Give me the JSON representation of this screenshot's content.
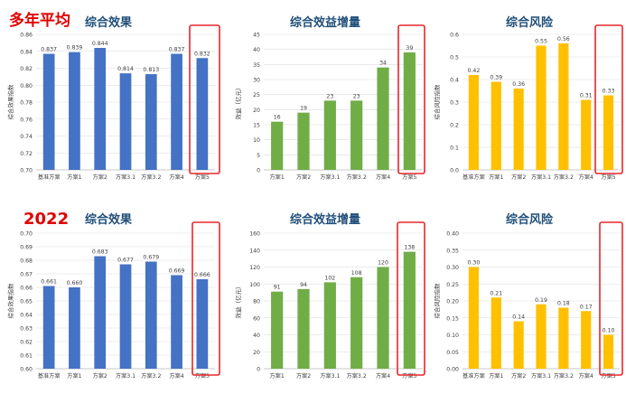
{
  "row_labels": {
    "top": "多年平均",
    "bottom": "2022"
  },
  "highlight_color": "#e8262a",
  "chart_data": [
    {
      "type": "bar",
      "title": "综合效果",
      "ylabel": "综合效果指数",
      "ylim": [
        0.7,
        0.86
      ],
      "yticks": [
        0.7,
        0.72,
        0.74,
        0.76,
        0.78,
        0.8,
        0.82,
        0.84,
        0.86
      ],
      "ytick_decimals": 2,
      "value_decimals": 3,
      "categories": [
        "基准方案",
        "方案1",
        "方案2",
        "方案3.1",
        "方案3.2",
        "方案4",
        "方案5"
      ],
      "values": [
        0.837,
        0.839,
        0.844,
        0.814,
        0.813,
        0.837,
        0.832
      ],
      "color": "#4472c4",
      "highlight_index": 6
    },
    {
      "type": "bar",
      "title": "综合效益增量",
      "ylabel": "效益（亿元）",
      "ylim": [
        0,
        45
      ],
      "yticks": [
        0,
        5,
        10,
        15,
        20,
        25,
        30,
        35,
        40,
        45
      ],
      "ytick_decimals": 0,
      "value_decimals": 0,
      "categories": [
        "方案1",
        "方案2",
        "方案3.1",
        "方案3.2",
        "方案4",
        "方案5"
      ],
      "values": [
        16,
        19,
        23,
        23,
        34,
        39
      ],
      "color": "#70ad47",
      "highlight_index": 5
    },
    {
      "type": "bar",
      "title": "综合风险",
      "ylabel": "综合风险指数",
      "ylim": [
        0,
        0.6
      ],
      "yticks": [
        0,
        0.1,
        0.2,
        0.3,
        0.4,
        0.5,
        0.6
      ],
      "ytick_decimals": 1,
      "value_decimals": 2,
      "categories": [
        "基准方案",
        "方案1",
        "方案2",
        "方案3.1",
        "方案3.2",
        "方案4",
        "方案5"
      ],
      "values": [
        0.42,
        0.39,
        0.36,
        0.55,
        0.56,
        0.31,
        0.33
      ],
      "color": "#ffc000",
      "highlight_index": 6
    },
    {
      "type": "bar",
      "title": "综合效果",
      "ylabel": "综合效果指数",
      "ylim": [
        0.6,
        0.7
      ],
      "yticks": [
        0.6,
        0.61,
        0.62,
        0.63,
        0.64,
        0.65,
        0.66,
        0.67,
        0.68,
        0.69,
        0.7
      ],
      "ytick_decimals": 2,
      "value_decimals": 3,
      "categories": [
        "基准方案",
        "方案1",
        "方案2",
        "方案3.1",
        "方案3.2",
        "方案4",
        "方案5"
      ],
      "values": [
        0.661,
        0.66,
        0.683,
        0.677,
        0.679,
        0.669,
        0.666
      ],
      "color": "#4472c4",
      "highlight_index": 6
    },
    {
      "type": "bar",
      "title": "综合效益增量",
      "ylabel": "效益（亿元）",
      "ylim": [
        0,
        160
      ],
      "yticks": [
        0,
        20,
        40,
        60,
        80,
        100,
        120,
        140,
        160
      ],
      "ytick_decimals": 0,
      "value_decimals": 0,
      "categories": [
        "方案1",
        "方案2",
        "方案3.1",
        "方案3.2",
        "方案4",
        "方案5"
      ],
      "values": [
        91,
        94,
        102,
        108,
        120,
        138
      ],
      "color": "#70ad47",
      "highlight_index": 5
    },
    {
      "type": "bar",
      "title": "综合风险",
      "ylabel": "综合风险指数",
      "ylim": [
        0,
        0.4
      ],
      "yticks": [
        0,
        0.05,
        0.1,
        0.15,
        0.2,
        0.25,
        0.3,
        0.35,
        0.4
      ],
      "ytick_decimals": 2,
      "value_decimals": 2,
      "categories": [
        "基准方案",
        "方案1",
        "方案2",
        "方案3.1",
        "方案3.2",
        "方案4",
        "方案5"
      ],
      "values": [
        0.3,
        0.21,
        0.14,
        0.19,
        0.18,
        0.17,
        0.1
      ],
      "color": "#ffc000",
      "highlight_index": 6
    }
  ]
}
